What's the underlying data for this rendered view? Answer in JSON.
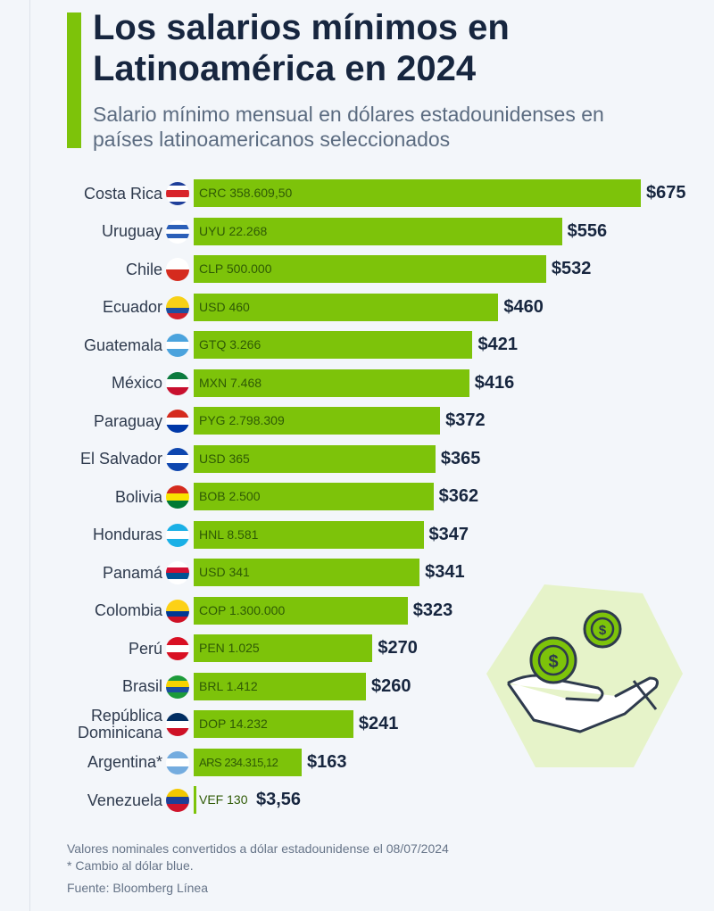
{
  "header": {
    "title": "Los salarios mínimos en Latinoamérica en 2024",
    "subtitle": "Salario mínimo mensual en dólares estadounidenses en países latinoamericanos seleccionados"
  },
  "colors": {
    "bar": "#7dc30a",
    "accent": "#7dc30a",
    "title": "#17263f"
  },
  "chart_data": {
    "type": "bar",
    "orientation": "horizontal",
    "title": "Los salarios mínimos en Latinoamérica en 2024",
    "subtitle": "Salario mínimo mensual en dólares estadounidenses en países latinoamericanos seleccionados",
    "xlabel": "",
    "ylabel": "",
    "xlim": [
      0,
      675
    ],
    "grid": false,
    "categories": [
      "Costa Rica",
      "Uruguay",
      "Chile",
      "Ecuador",
      "Guatemala",
      "México",
      "Paraguay",
      "El Salvador",
      "Bolivia",
      "Honduras",
      "Panamá",
      "Colombia",
      "Perú",
      "Brasil",
      "República Dominicana",
      "Argentina*",
      "Venezuela"
    ],
    "values": [
      675,
      556,
      532,
      460,
      421,
      416,
      372,
      365,
      362,
      347,
      341,
      323,
      270,
      260,
      241,
      163,
      3.56
    ],
    "value_labels": [
      "$675",
      "$556",
      "$532",
      "$460",
      "$421",
      "$416",
      "$372",
      "$365",
      "$362",
      "$347",
      "$341",
      "$323",
      "$270",
      "$260",
      "$241",
      "$163",
      "$3,56"
    ],
    "local_labels": [
      "CRC 358.609,50",
      "UYU 22.268",
      "CLP 500.000",
      "USD 460",
      "GTQ 3.266",
      "MXN 7.468",
      "PYG 2.798.309",
      "USD 365",
      "BOB 2.500",
      "HNL 8.581",
      "USD 341",
      "COP 1.300.000",
      "PEN 1.025",
      "BRL 1.412",
      "DOP 14.232",
      "ARS 234.315,12",
      "VEF 130"
    ],
    "flag_colors": [
      [
        "#1f3f9a",
        "#fff",
        "#d8232a",
        "#d8232a",
        "#fff",
        "#1f3f9a"
      ],
      [
        "#fff",
        "#2b5fb8",
        "#fff",
        "#2b5fb8",
        "#fff"
      ],
      [
        "#fff",
        "#fff",
        "#d52b1e",
        "#d52b1e"
      ],
      [
        "#f7d117",
        "#f7d117",
        "#1e4fa0",
        "#d3202c"
      ],
      [
        "#4ba3dd",
        "#fff",
        "#4ba3dd"
      ],
      [
        "#0b7a3e",
        "#fff",
        "#c8102e"
      ],
      [
        "#d52b1e",
        "#fff",
        "#0038a8"
      ],
      [
        "#0f47af",
        "#fff",
        "#0f47af"
      ],
      [
        "#d52b1e",
        "#f9e300",
        "#007934"
      ],
      [
        "#1ab0e6",
        "#fff",
        "#1ab0e6"
      ],
      [
        "#fff",
        "#d21034",
        "#005293",
        "#fff"
      ],
      [
        "#fcd116",
        "#fcd116",
        "#003893",
        "#ce1126"
      ],
      [
        "#d91023",
        "#fff",
        "#d91023"
      ],
      [
        "#1c9b3a",
        "#f5d300",
        "#1c4f9c",
        "#1c9b3a"
      ],
      [
        "#002d62",
        "#fff",
        "#ce1126"
      ],
      [
        "#74acdf",
        "#fff",
        "#74acdf"
      ],
      [
        "#f4c800",
        "#1e3f96",
        "#cf142b"
      ]
    ]
  },
  "footer": {
    "note": "Valores nominales convertidos a dólar estadounidense el 08/07/2024",
    "asterisk": "* Cambio al dólar blue.",
    "source": "Fuente: Bloomberg Línea"
  }
}
